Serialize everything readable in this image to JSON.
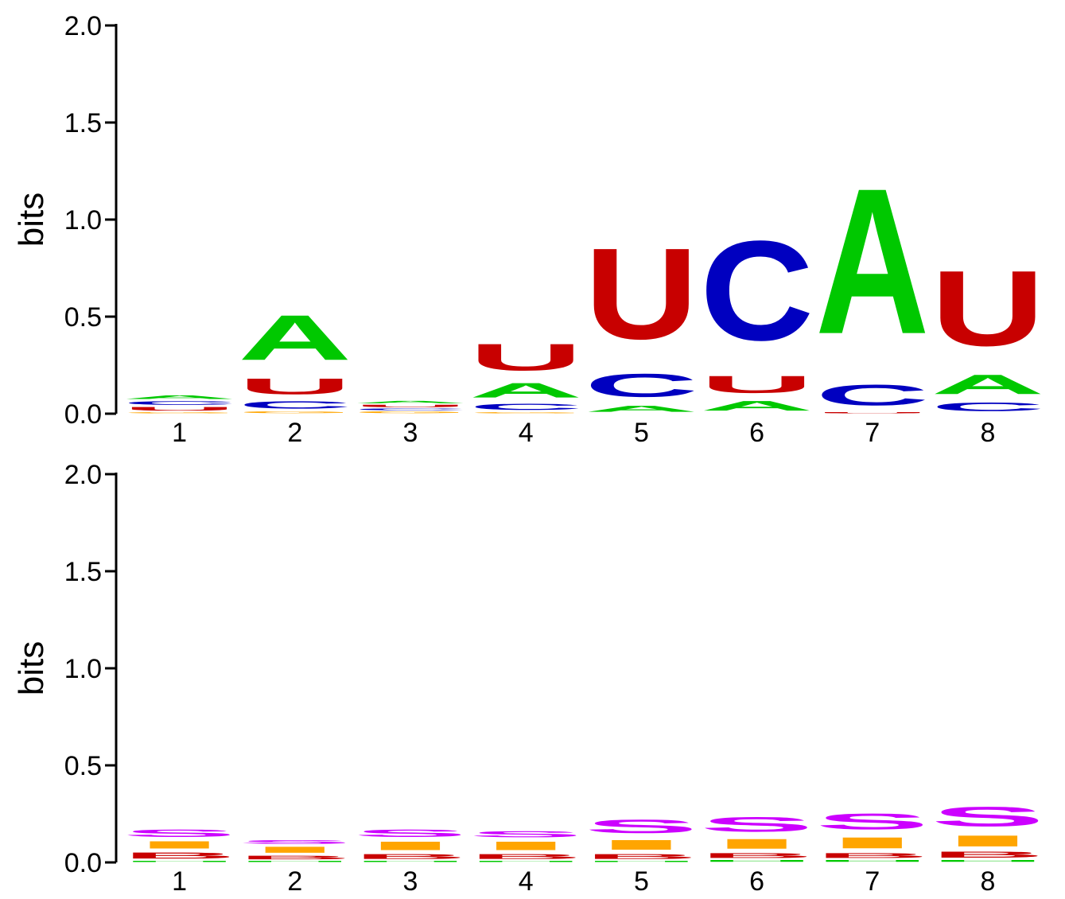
{
  "chart_data": [
    {
      "type": "sequence-logo",
      "ylabel": "bits",
      "ylim": [
        0,
        2.0
      ],
      "yticks": [
        "0.0",
        "0.5",
        "1.0",
        "1.5",
        "2.0"
      ],
      "categories": [
        "1",
        "2",
        "3",
        "4",
        "5",
        "6",
        "7",
        "8"
      ],
      "colors": {
        "A": "#00c800",
        "C": "#0000c0",
        "G": "#ffa500",
        "U": "#c80000"
      },
      "columns": [
        [
          {
            "letter": "G",
            "height": 0.01
          },
          {
            "letter": "U",
            "height": 0.03
          },
          {
            "letter": "C",
            "height": 0.03
          },
          {
            "letter": "A",
            "height": 0.03
          }
        ],
        [
          {
            "letter": "G",
            "height": 0.015
          },
          {
            "letter": "C",
            "height": 0.06
          },
          {
            "letter": "U",
            "height": 0.13
          },
          {
            "letter": "A",
            "height": 0.37
          }
        ],
        [
          {
            "letter": "G",
            "height": 0.015
          },
          {
            "letter": "C",
            "height": 0.015
          },
          {
            "letter": "U",
            "height": 0.02
          },
          {
            "letter": "A",
            "height": 0.02
          }
        ],
        [
          {
            "letter": "G",
            "height": 0.01
          },
          {
            "letter": "C",
            "height": 0.05
          },
          {
            "letter": "A",
            "height": 0.12
          },
          {
            "letter": "U",
            "height": 0.22
          }
        ],
        [
          {
            "letter": "A",
            "height": 0.05
          },
          {
            "letter": "C",
            "height": 0.19
          },
          {
            "letter": "U",
            "height": 0.75
          }
        ],
        [
          {
            "letter": "A",
            "height": 0.08
          },
          {
            "letter": "U",
            "height": 0.14
          },
          {
            "letter": "C",
            "height": 0.82
          }
        ],
        [
          {
            "letter": "U",
            "height": 0.01
          },
          {
            "letter": "C",
            "height": 0.17
          },
          {
            "letter": "A",
            "height": 1.2
          }
        ],
        [
          {
            "letter": "C",
            "height": 0.07
          },
          {
            "letter": "A",
            "height": 0.16
          },
          {
            "letter": "U",
            "height": 0.62
          }
        ]
      ]
    },
    {
      "type": "sequence-logo",
      "ylabel": "bits",
      "ylim": [
        0,
        2.0
      ],
      "yticks": [
        "0.0",
        "0.5",
        "1.0",
        "1.5",
        "2.0"
      ],
      "categories": [
        "1",
        "2",
        "3",
        "4",
        "5",
        "6",
        "7",
        "8"
      ],
      "colors": {
        "H": "#00c800",
        "B": "#c80000",
        "I": "#ffa500",
        "S": "#cc00ff"
      },
      "columns": [
        [
          {
            "letter": "H",
            "height": 0.01
          },
          {
            "letter": "B",
            "height": 0.05
          },
          {
            "letter": "I",
            "height": 0.06
          },
          {
            "letter": "S",
            "height": 0.06
          }
        ],
        [
          {
            "letter": "H",
            "height": 0.01
          },
          {
            "letter": "B",
            "height": 0.03
          },
          {
            "letter": "I",
            "height": 0.05
          },
          {
            "letter": "S",
            "height": 0.03
          }
        ],
        [
          {
            "letter": "H",
            "height": 0.01
          },
          {
            "letter": "B",
            "height": 0.04
          },
          {
            "letter": "I",
            "height": 0.07
          },
          {
            "letter": "S",
            "height": 0.06
          }
        ],
        [
          {
            "letter": "H",
            "height": 0.01
          },
          {
            "letter": "B",
            "height": 0.04
          },
          {
            "letter": "I",
            "height": 0.07
          },
          {
            "letter": "S",
            "height": 0.05
          }
        ],
        [
          {
            "letter": "H",
            "height": 0.01
          },
          {
            "letter": "B",
            "height": 0.04
          },
          {
            "letter": "I",
            "height": 0.08
          },
          {
            "letter": "S",
            "height": 0.11
          }
        ],
        [
          {
            "letter": "H",
            "height": 0.015
          },
          {
            "letter": "B",
            "height": 0.04
          },
          {
            "letter": "I",
            "height": 0.08
          },
          {
            "letter": "S",
            "height": 0.12
          }
        ],
        [
          {
            "letter": "H",
            "height": 0.015
          },
          {
            "letter": "B",
            "height": 0.04
          },
          {
            "letter": "I",
            "height": 0.09
          },
          {
            "letter": "S",
            "height": 0.13
          }
        ],
        [
          {
            "letter": "H",
            "height": 0.015
          },
          {
            "letter": "B",
            "height": 0.05
          },
          {
            "letter": "I",
            "height": 0.09
          },
          {
            "letter": "S",
            "height": 0.16
          }
        ]
      ]
    }
  ]
}
